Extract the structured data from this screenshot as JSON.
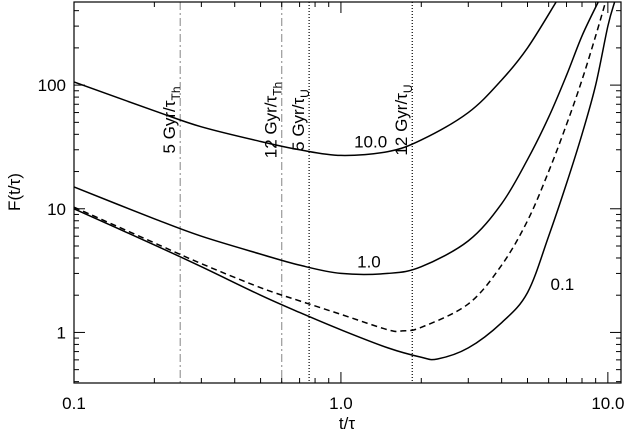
{
  "chart_data": {
    "type": "line",
    "xlabel": "t/τ",
    "ylabel": "F(t/τ)",
    "xlog": true,
    "ylog": true,
    "xlim": [
      0.1,
      11.2
    ],
    "ylim": [
      0.39,
      470
    ],
    "xticks": [
      0.1,
      {
        "value": 1,
        "label": "1.0"
      },
      {
        "value": 10,
        "label": "10.0"
      }
    ],
    "xminorticks": [
      0.2,
      0.3,
      0.4,
      0.5,
      0.6,
      0.7,
      0.8,
      0.9,
      2,
      3,
      4,
      5,
      6,
      7,
      8,
      9
    ],
    "yticks": [
      1,
      10,
      100
    ],
    "yminorticks": [
      0.4,
      0.5,
      0.6,
      0.7,
      0.8,
      0.9,
      2,
      3,
      4,
      5,
      6,
      7,
      8,
      9,
      20,
      30,
      40,
      50,
      60,
      70,
      80,
      90,
      200,
      300,
      400
    ],
    "series": [
      {
        "name": "10.0",
        "color": "#000000",
        "dash": "none",
        "label_at": [
          1.12,
          27
        ],
        "x": [
          0.1,
          0.2,
          0.3,
          0.5,
          0.7,
          1.0,
          1.5,
          2.0,
          3,
          4,
          5,
          6.4
        ],
        "values": [
          106,
          62,
          46,
          35,
          30,
          27,
          29,
          36,
          60,
          110,
          200,
          470
        ]
      },
      {
        "name": "1.0",
        "color": "#000000",
        "dash": "none",
        "label_at": [
          1.15,
          2.9
        ],
        "x": [
          0.1,
          0.2,
          0.3,
          0.5,
          0.7,
          1.0,
          1.5,
          2.0,
          3,
          4,
          5,
          6,
          7,
          8,
          9.2
        ],
        "values": [
          15,
          8.3,
          6.0,
          4.3,
          3.5,
          3.0,
          3.0,
          3.4,
          5.5,
          11,
          25,
          55,
          120,
          250,
          470
        ]
      },
      {
        "name": null,
        "color": "#000000",
        "dash": "6,4",
        "x": [
          0.1,
          0.2,
          0.3,
          0.5,
          0.7,
          1.0,
          1.5,
          1.7,
          2.0,
          3,
          4,
          5,
          6,
          7,
          8,
          9,
          9.8
        ],
        "values": [
          10.3,
          5.3,
          3.6,
          2.3,
          1.8,
          1.4,
          1.05,
          1.03,
          1.1,
          1.7,
          3.5,
          8,
          20,
          48,
          110,
          250,
          470
        ]
      },
      {
        "name": "0.1",
        "color": "#000000",
        "dash": "none",
        "label_at": [
          6.1,
          1.9
        ],
        "x": [
          0.1,
          0.2,
          0.3,
          0.5,
          0.7,
          1.0,
          1.5,
          2.0,
          2.3,
          3,
          4,
          5,
          6,
          7,
          8,
          9,
          10,
          10.6
        ],
        "values": [
          10,
          5.1,
          3.4,
          2.0,
          1.45,
          1.05,
          0.75,
          0.63,
          0.61,
          0.75,
          1.2,
          2.1,
          6,
          16,
          40,
          100,
          300,
          470
        ]
      }
    ],
    "vlines": [
      {
        "x": 0.25,
        "text": "5 Gyr/τ",
        "sub": "Th",
        "color": "#999999",
        "dash": "8,3,2,3"
      },
      {
        "x": 0.6,
        "text": "12 Gyr/τ",
        "sub": "Th",
        "color": "#999999",
        "dash": "8,3,2,3"
      },
      {
        "x": 0.76,
        "text": "5 Gyr/τ",
        "sub": "U",
        "color": "#000000",
        "dash": "1,2"
      },
      {
        "x": 1.85,
        "text": "12 Gyr/τ",
        "sub": "U",
        "color": "#000000",
        "dash": "1,2"
      }
    ]
  }
}
